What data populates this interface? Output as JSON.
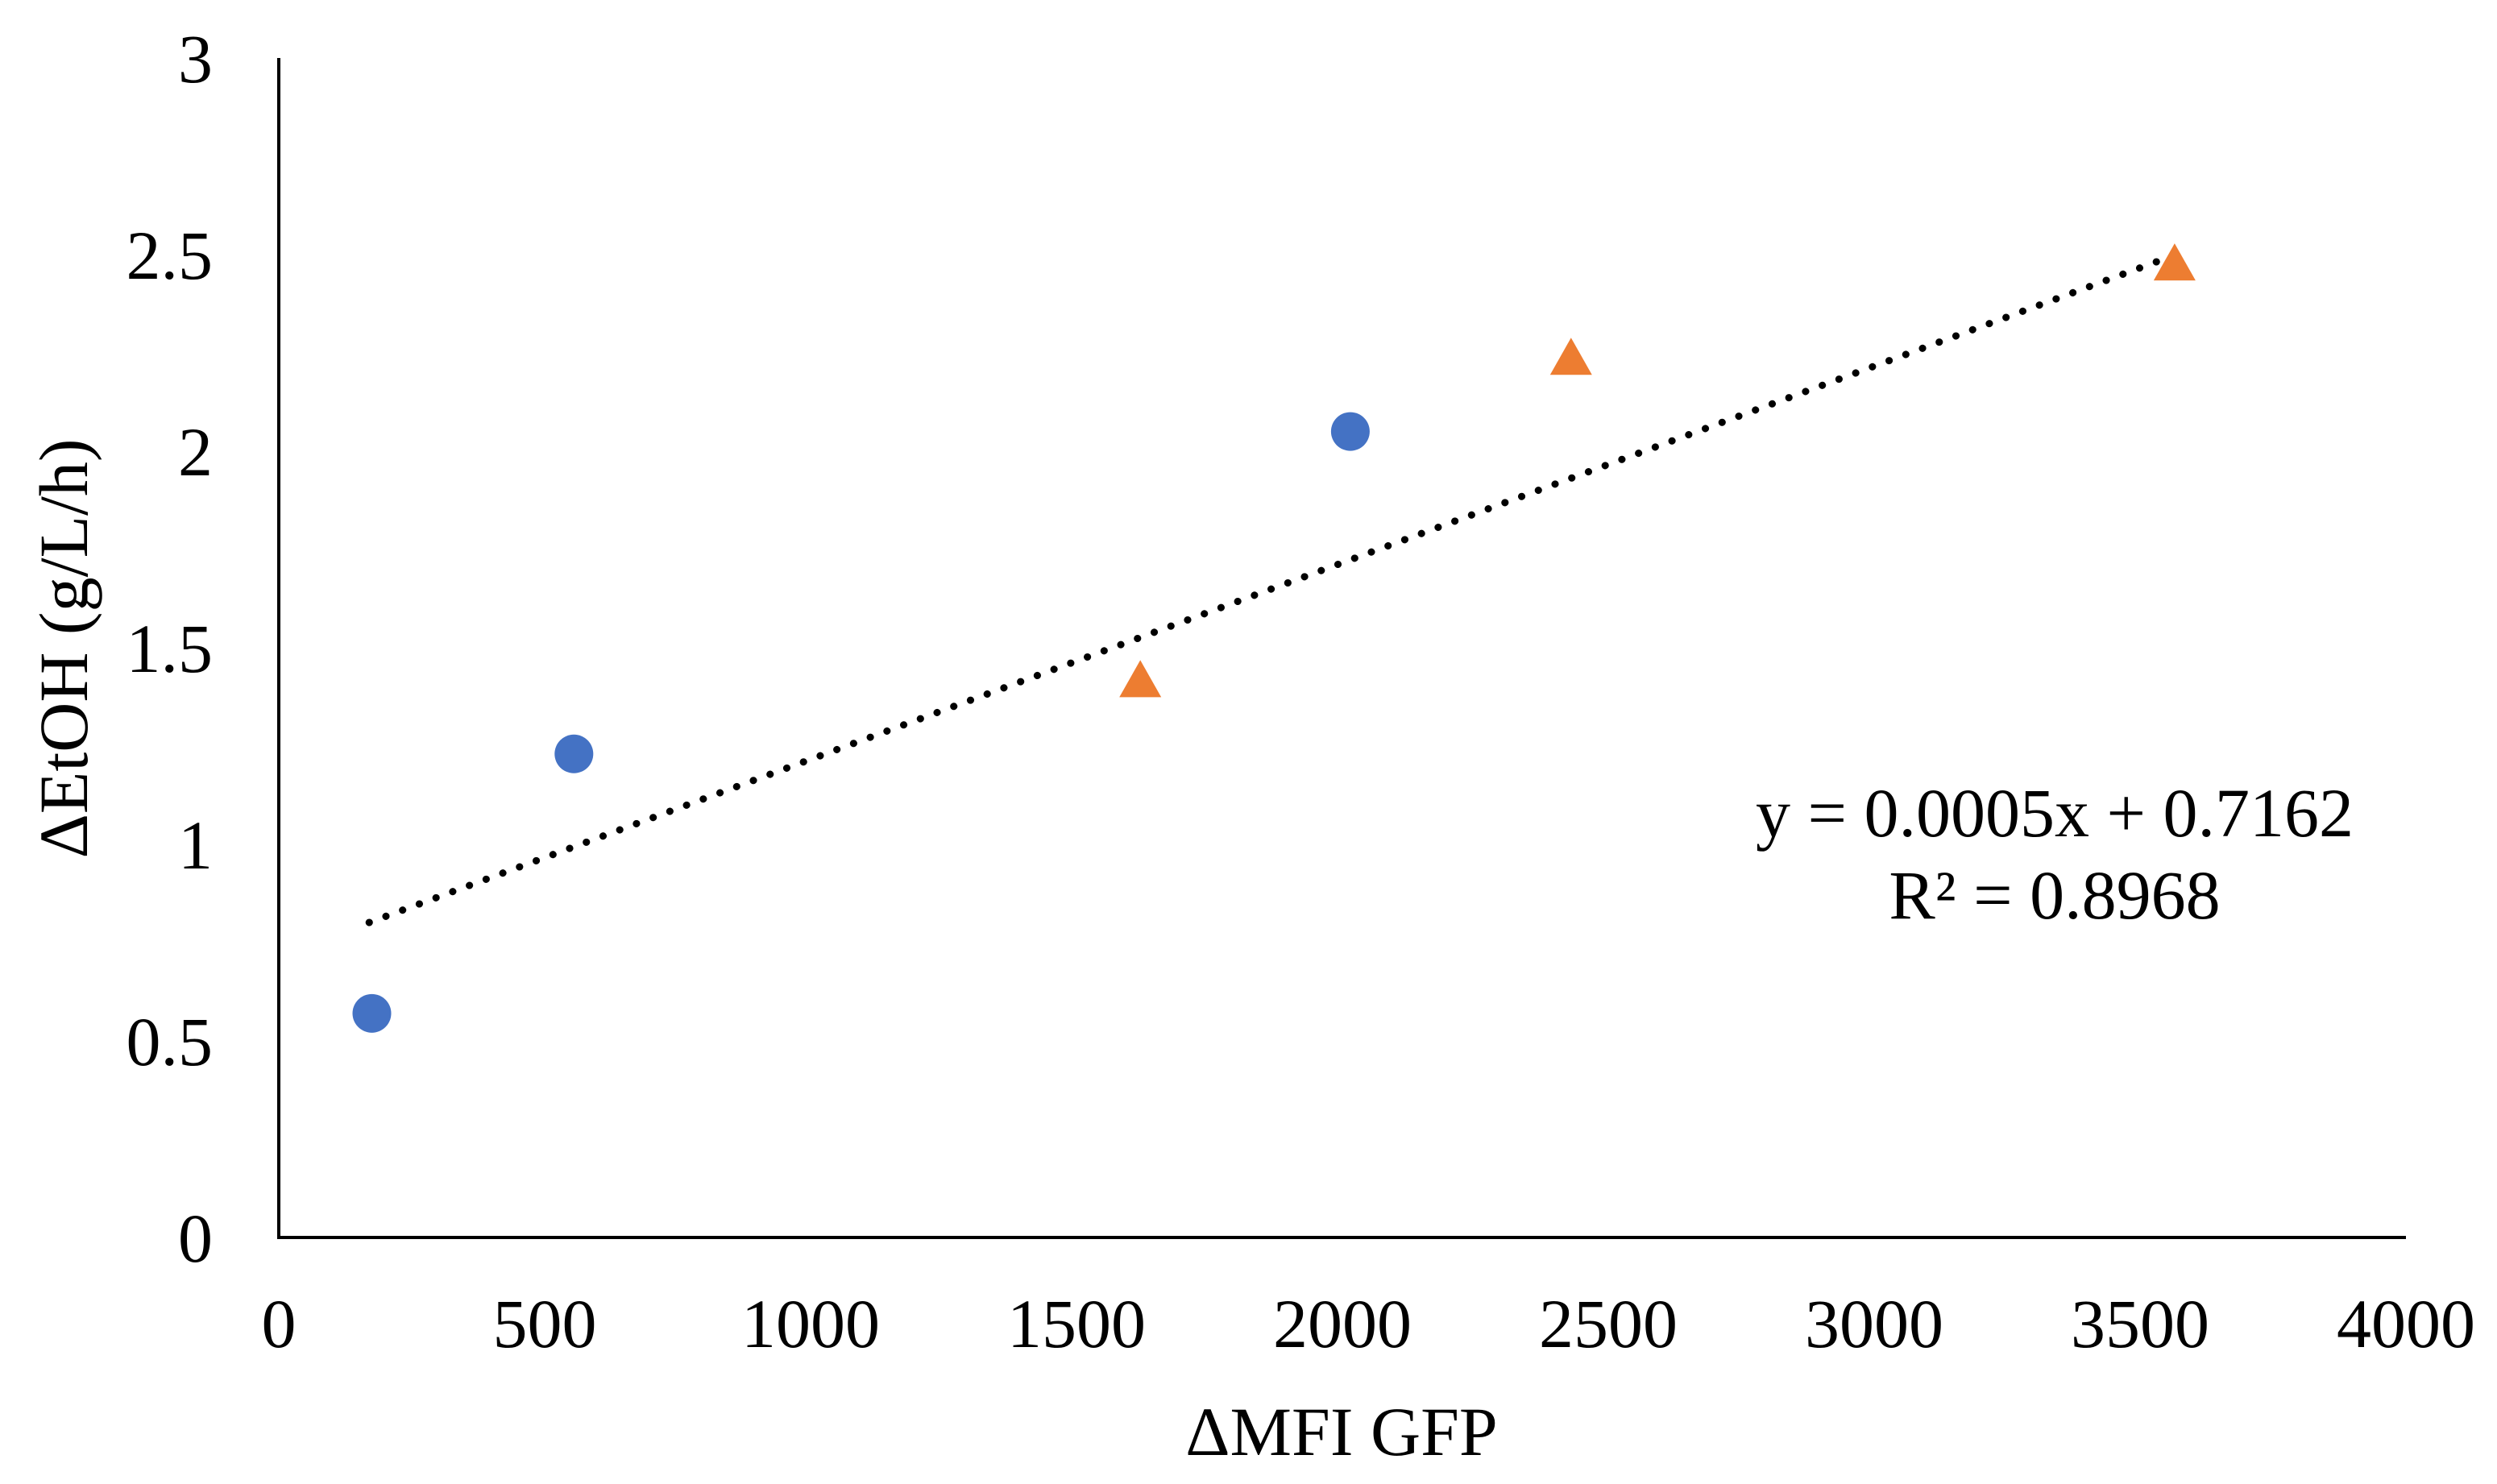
{
  "chart_data": {
    "type": "scatter",
    "title": "",
    "xlabel": "ΔMFI GFP",
    "ylabel": "ΔEtOH (g/L/h)",
    "xlim": [
      0,
      4000
    ],
    "ylim": [
      0,
      3
    ],
    "xticks": [
      0,
      500,
      1000,
      1500,
      2000,
      2500,
      3000,
      3500,
      4000
    ],
    "yticks": [
      0,
      0.5,
      1,
      1.5,
      2,
      2.5,
      3
    ],
    "xtick_labels": [
      "0",
      "500",
      "1000",
      "1500",
      "2000",
      "2500",
      "3000",
      "3500",
      "4000"
    ],
    "ytick_labels": [
      "0",
      "0.5",
      "1",
      "1.5",
      "2",
      "2.5",
      "3"
    ],
    "grid": false,
    "legend": "none",
    "series": [
      {
        "name": "circles",
        "marker": "circle",
        "color": "#4472C4",
        "points": [
          {
            "x": 175,
            "y": 0.57
          },
          {
            "x": 555,
            "y": 1.23
          },
          {
            "x": 2015,
            "y": 2.05
          }
        ]
      },
      {
        "name": "triangles",
        "marker": "triangle",
        "color": "#ED7D31",
        "points": [
          {
            "x": 1620,
            "y": 1.41
          },
          {
            "x": 2430,
            "y": 2.23
          },
          {
            "x": 3565,
            "y": 2.47
          }
        ]
      }
    ],
    "trendline": {
      "style": "dotted",
      "color": "#000000",
      "x_start": 170,
      "x_end": 3550,
      "slope": 0.0005,
      "intercept": 0.7162
    },
    "annotations": {
      "equation": "y = 0.0005x + 0.7162",
      "r_squared": "R² = 0.8968"
    }
  }
}
